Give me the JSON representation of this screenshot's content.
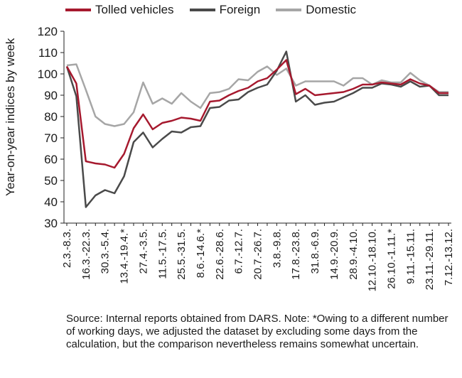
{
  "chart_data": {
    "type": "line",
    "ylabel": "Year-on-year indices by week",
    "ylim": [
      30,
      120
    ],
    "yticks": [
      30,
      40,
      50,
      60,
      70,
      80,
      90,
      100,
      110,
      120
    ],
    "grid": false,
    "legend_position": "top",
    "x": [
      "2.3.-8.3.",
      "9.3.-15.3.",
      "16.3.-22.3.",
      "23.3.-29.3.",
      "30.3.-5.4.",
      "6.4.-12.4.",
      "13.4.-19.4.*",
      "20.4.-26.4.",
      "27.4.-3.5.",
      "4.5.-10.5.",
      "11.5.-17.5.",
      "18.5.-24.5.",
      "25.5.-31.5.",
      "1.6.-7.6.",
      "8.6.-14.6.*",
      "15.6.-21.6.",
      "22.6.-28.6.",
      "29.6.-5.7.",
      "6.7.-12.7.",
      "13.7.-19.7.",
      "20.7.-26.7.",
      "27.7.-2.8.",
      "3.8.-9.8.",
      "10.8.-16.8.",
      "17.8.-23.8.",
      "24.8.-30.8.",
      "31.8.-6.9.",
      "7.9.-13.9.",
      "14.9.-20.9.",
      "21.9.-27.9.",
      "28.9.-4.10.",
      "5.10.-11.10.",
      "12.10.-18.10.",
      "19.10.-25.10.",
      "26.10.-1.11.*",
      "2.11.-8.11.",
      "9.11.-15.11.",
      "16.11.-22.11.",
      "23.11.-29.11.",
      "30.11.-6.12.",
      "7.12.-13.12."
    ],
    "tick_labels": [
      "2.3.-8.3.",
      "16.3.-22.3.",
      "30.3.-5.4.",
      "13.4.-19.4.*",
      "27.4.-3.5.",
      "11.5.-17.5.",
      "25.5.-31.5.",
      "8.6.-14.6.*",
      "22.6.-28.6.",
      "6.7.-12.7.",
      "20.7.-26.7.",
      "3.8.-9.8.",
      "17.8.-23.8.",
      "31.8.-6.9.",
      "14.9.-20.9.",
      "28.9.-4.10.",
      "12.10.-18.10.",
      "26.10.-1.11.*",
      "9.11.-15.11.",
      "23.11.-29.11.",
      "7.12.-13.12."
    ],
    "series": [
      {
        "name": "Tolled vehicles",
        "color": "#a6192e",
        "values": [
          103.5,
          95.5,
          59,
          58,
          57.5,
          56,
          62.5,
          74.5,
          81,
          74,
          77,
          78,
          79.5,
          79,
          78,
          87,
          87.5,
          90,
          92,
          93.5,
          96.5,
          98,
          102,
          106.5,
          90.5,
          93,
          90,
          90.5,
          91,
          91.5,
          93,
          95,
          95,
          96,
          95.5,
          95,
          97.5,
          95.5,
          94.5,
          91,
          91
        ]
      },
      {
        "name": "Foreign",
        "color": "#4a4a4a",
        "values": [
          103.5,
          89.5,
          37.5,
          43,
          45.5,
          44,
          52,
          68,
          72.5,
          65.5,
          69.5,
          73,
          72.5,
          75,
          75.5,
          84,
          84.5,
          87.5,
          88,
          91.5,
          93.5,
          95,
          101.5,
          110.5,
          87,
          90,
          85.5,
          86.5,
          87,
          89,
          91,
          93.5,
          93.5,
          95.5,
          95,
          94,
          96.5,
          94,
          94.5,
          90,
          90
        ]
      },
      {
        "name": "Domestic",
        "color": "#a6a6a6",
        "values": [
          104,
          104.5,
          92.5,
          80,
          76.5,
          75.5,
          76.5,
          82,
          96,
          86,
          88.5,
          86,
          91,
          87,
          84,
          91,
          91.5,
          93,
          97.5,
          97,
          101,
          103.5,
          99.5,
          102.5,
          94.5,
          96.5,
          96.5,
          96.5,
          96.5,
          94.5,
          98,
          98,
          95,
          97,
          96,
          96,
          100.5,
          97,
          94.5,
          91.5,
          91.5
        ]
      }
    ]
  },
  "footnote": "Source: Internal reports obtained from DARS. Note: *Owing to a different number of working days, we adjusted the dataset by excluding some days from the calculation, but the comparison nevertheless remains somewhat uncertain."
}
